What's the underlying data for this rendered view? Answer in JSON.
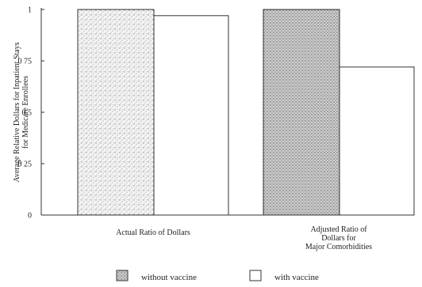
{
  "chart_data": {
    "type": "bar",
    "ylabel": [
      "Average Relative Dollars for Inpatient Stays",
      "for Medicare Enrollees"
    ],
    "ylim": [
      0,
      1
    ],
    "yticks": [
      {
        "value": 0,
        "label": "0"
      },
      {
        "value": 0.25,
        "label": "0 25"
      },
      {
        "value": 0.5,
        "label": "0 5"
      },
      {
        "value": 0.75,
        "label": "0 75"
      },
      {
        "value": 1,
        "label": "1"
      }
    ],
    "categories": [
      [
        "Actual Ratio of Dollars"
      ],
      [
        "Adjusted Ratio of",
        "Dollars  for",
        "Major Comorbidities"
      ]
    ],
    "series": [
      {
        "name": "without vaccine",
        "values": [
          1.0,
          1.0
        ],
        "fill": "stippled-gray"
      },
      {
        "name": "with vaccine",
        "values": [
          0.97,
          0.72
        ],
        "fill": "white"
      }
    ],
    "legend_position": "bottom"
  }
}
